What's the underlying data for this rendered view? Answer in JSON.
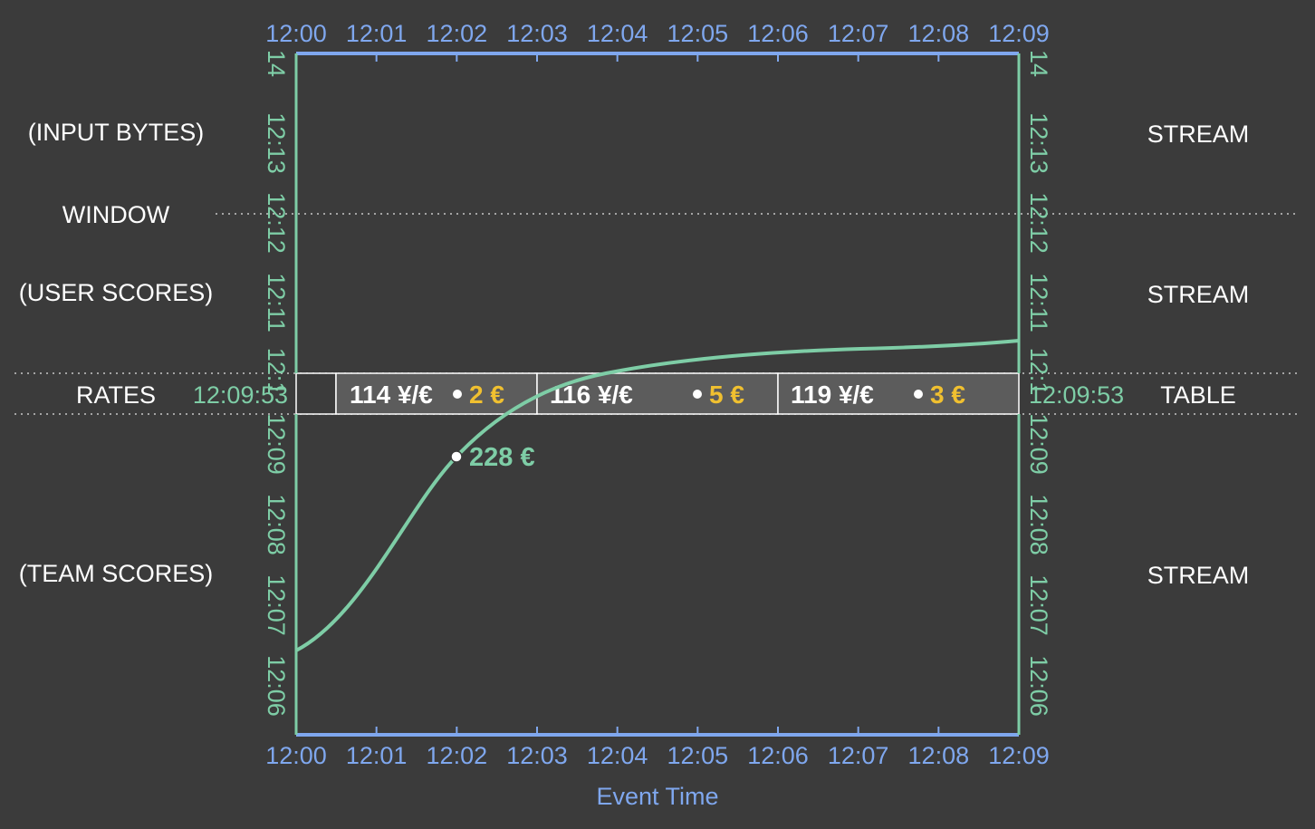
{
  "rows": {
    "input_bytes": "(INPUT BYTES)",
    "window": "WINDOW",
    "user_scores": "(USER SCORES)",
    "rates": "RATES",
    "team_scores": "(TEAM SCORES)"
  },
  "right_labels": {
    "top": "STREAM",
    "middle": "STREAM",
    "table": "TABLE",
    "bottom": "STREAM"
  },
  "event_time_ticks": [
    "12:00",
    "12:01",
    "12:02",
    "12:03",
    "12:04",
    "12:05",
    "12:06",
    "12:07",
    "12:08",
    "12:09"
  ],
  "event_time_label": "Event Time",
  "processing_ticks_top": [
    "14",
    "12:13",
    "12:12",
    "12:11",
    "12:1"
  ],
  "processing_ticks_bottom": [
    "12:09",
    "12:08",
    "12:07",
    "12:06"
  ],
  "table_time": "12:09:53",
  "rate_cells": [
    {
      "rate": "114 ¥/€",
      "amount": "2 €"
    },
    {
      "rate": "116 ¥/€",
      "amount": "5 €"
    },
    {
      "rate": "119 ¥/€",
      "amount": "3 €"
    }
  ],
  "output_value": "228 €",
  "colors": {
    "background": "#3b3b3b",
    "event_time": "#7fa7ee",
    "processing_time": "#7ecda6",
    "amount": "#f0c030",
    "table_cell": "#5c5c5c"
  }
}
